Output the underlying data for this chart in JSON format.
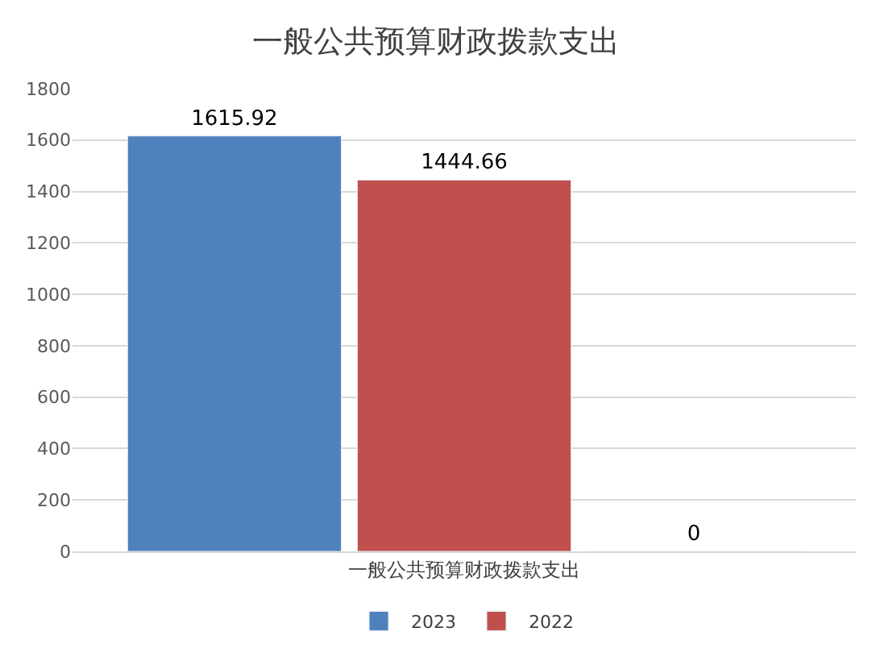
{
  "chart_data": {
    "type": "bar",
    "title": "一般公共预算财政拨款支出",
    "categories": [
      "一般公共预算财政拨款支出"
    ],
    "series": [
      {
        "name": "2023",
        "color": "#4f81bd",
        "values": [
          1615.92
        ]
      },
      {
        "name": "2022",
        "color": "#c0504d",
        "values": [
          1444.66
        ]
      },
      {
        "values": [
          0
        ]
      }
    ],
    "ylim": [
      0,
      1800
    ],
    "yticks": [
      0,
      200,
      400,
      600,
      800,
      1000,
      1200,
      1400,
      1600,
      1800
    ],
    "grid": "y",
    "legend": "bottom",
    "data_labels": true
  }
}
